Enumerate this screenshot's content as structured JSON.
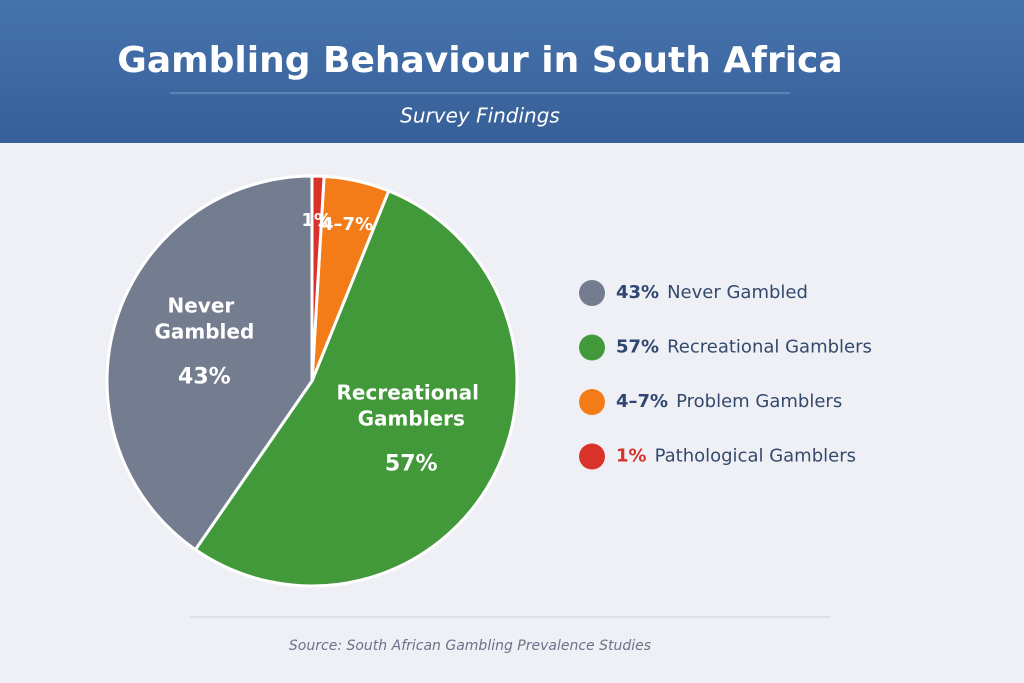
{
  "chart_data": {
    "type": "pie",
    "title": "Gambling Behaviour in South Africa",
    "subtitle": "Survey Findings",
    "source": "Source: South African Gambling Prevalence Studies",
    "categories": [
      "Never Gambled",
      "Recreational Gamblers",
      "Problem Gamblers",
      "Pathological Gamblers"
    ],
    "values": [
      43,
      57,
      [
        4,
        7
      ],
      1
    ],
    "value_labels": [
      "43%",
      "57%",
      "4–7%",
      "1%"
    ],
    "colors": [
      "#747d90",
      "#41993a",
      "#f47c18",
      "#d9322b"
    ],
    "legend": "right"
  }
}
